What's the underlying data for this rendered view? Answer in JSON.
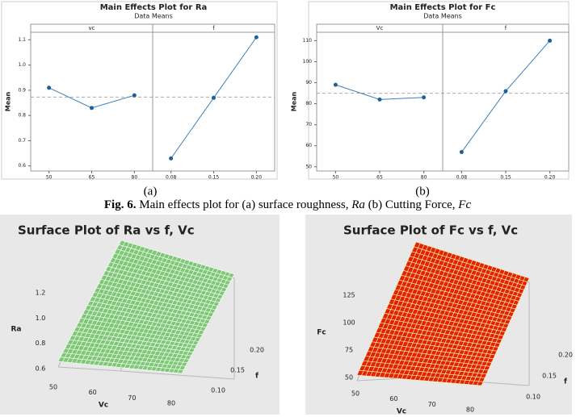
{
  "chart_data": [
    {
      "type": "main-effects",
      "title": "Main Effects Plot for Ra",
      "subtitle": "Data Means",
      "ylabel": "Mean",
      "ylim": [
        0.58,
        1.13
      ],
      "yticks": [
        0.6,
        0.7,
        0.8,
        0.9,
        {
          "value": 1,
          "label": "1.0"
        },
        1.1
      ],
      "reference_line": 0.873,
      "color": "#3d7fb8",
      "panels": [
        {
          "name": "vc",
          "categories": [
            "50",
            "65",
            "80"
          ],
          "values": [
            0.91,
            0.83,
            0.88
          ]
        },
        {
          "name": "f",
          "categories": [
            "0.08",
            "0.15",
            "0.20"
          ],
          "values": [
            0.63,
            0.87,
            1.11
          ]
        }
      ]
    },
    {
      "type": "main-effects",
      "title": "Main Effects Plot for Fc",
      "subtitle": "Data Means",
      "ylabel": "Mean",
      "ylim": [
        48,
        114
      ],
      "yticks": [
        50,
        60,
        70,
        80,
        90,
        100,
        110
      ],
      "reference_line": 85,
      "color": "#3d7fb8",
      "panels": [
        {
          "name": "Vc",
          "categories": [
            "50",
            "65",
            "80"
          ],
          "values": [
            89,
            82,
            83
          ]
        },
        {
          "name": "f",
          "categories": [
            "0.08",
            "0.15",
            "0.20"
          ],
          "values": [
            57,
            86,
            110
          ]
        }
      ]
    },
    {
      "type": "surface",
      "title": "Surface Plot of Ra vs f, Vc",
      "xlabel": "Vc",
      "ylabel": "f",
      "zlabel": "Ra",
      "color": "#7cc874",
      "mesh_color": "#ffffff",
      "xlim": [
        50,
        80
      ],
      "xticks": [
        50,
        60,
        70,
        80
      ],
      "ylim": [
        0.1,
        0.2
      ],
      "yticks": [
        {
          "value": 0.1,
          "label": "0.10"
        },
        0.15,
        {
          "value": 0.2,
          "label": "0.20"
        }
      ],
      "zlim": [
        0.6,
        1.2
      ],
      "zticks": [
        0.6,
        0.8,
        {
          "value": 1,
          "label": "1.0"
        },
        1.2
      ]
    },
    {
      "type": "surface",
      "title": "Surface Plot of Fc vs f, Vc",
      "xlabel": "Vc",
      "ylabel": "f",
      "zlabel": "Fc",
      "color": "#e22200",
      "mesh_color": "#fff2b0",
      "xlim": [
        50,
        80
      ],
      "xticks": [
        50,
        60,
        70,
        80
      ],
      "ylim": [
        0.1,
        0.2
      ],
      "yticks": [
        {
          "value": 0.1,
          "label": "0.10"
        },
        0.15,
        {
          "value": 0.2,
          "label": "0.20"
        }
      ],
      "zlim": [
        50,
        125
      ],
      "zticks": [
        50,
        75,
        100,
        125
      ]
    }
  ],
  "panel_labels": [
    "(a)",
    "(b)"
  ],
  "caption": {
    "number": "Fig. 6.",
    "text1": " Main effects plot for (a) surface roughness, ",
    "var1": "Ra",
    "text2": " (b) Cutting Force, ",
    "var2": "Fc"
  }
}
